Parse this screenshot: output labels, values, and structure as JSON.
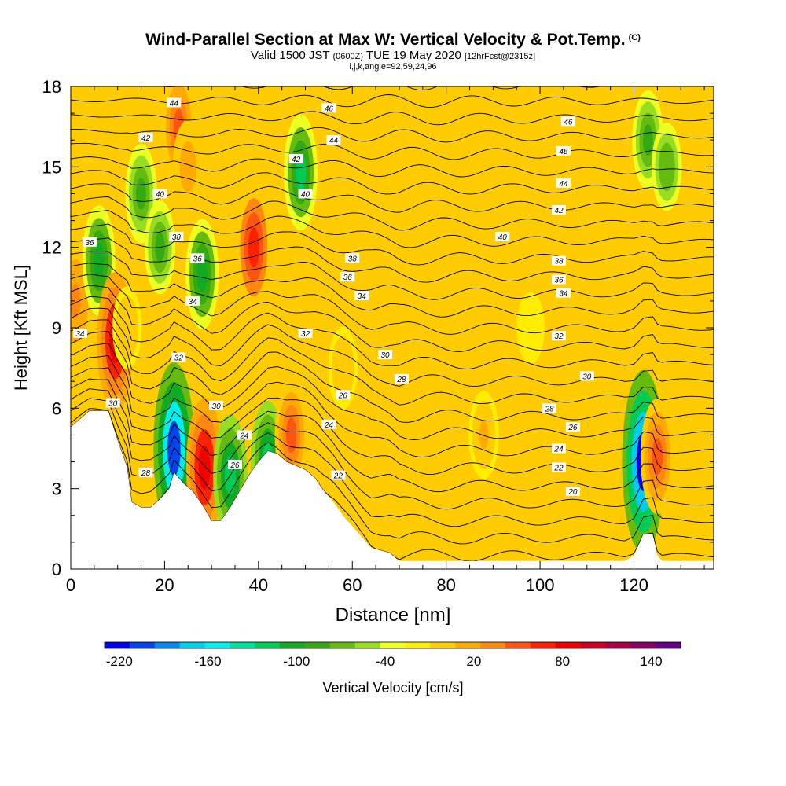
{
  "header": {
    "title": "Wind-Parallel Section at Max W: Vertical Velocity & Pot.Temp.",
    "title_tag": "(C)",
    "valid_prefix": "Valid 1500 JST",
    "valid_utc": "(0600Z)",
    "valid_date": "TUE 19 May 2020",
    "forecast": "[12hrFcst@2315z]",
    "indices": "i,j,k,angle=92,59,24,96"
  },
  "chart_data": {
    "type": "heatmap",
    "xlabel": "Distance [nm]",
    "ylabel": "Height [Kft MSL]",
    "xlim": [
      0,
      137
    ],
    "ylim": [
      0,
      18
    ],
    "x_ticks": [
      0,
      20,
      40,
      60,
      80,
      100,
      120
    ],
    "y_ticks": [
      0,
      3,
      6,
      9,
      12,
      15,
      18
    ],
    "colorbar": {
      "label": "Vertical Velocity [cm/s]",
      "min": -230,
      "max": 160,
      "step": 20,
      "tick_labels": [
        -220,
        -160,
        -100,
        -40,
        20,
        80,
        140
      ],
      "colors": [
        "#0000ee",
        "#0044ee",
        "#0088ee",
        "#00ccee",
        "#00eeee",
        "#00dd99",
        "#00cc55",
        "#11aa22",
        "#33aa11",
        "#66bb11",
        "#99dd22",
        "#eeff22",
        "#ffee00",
        "#ffcc00",
        "#ffaa00",
        "#ff8811",
        "#ff5511",
        "#ff2200",
        "#ee0000",
        "#cc0022",
        "#aa0044",
        "#880066",
        "#660088"
      ]
    },
    "terrain_kft": [
      [
        0,
        5.3
      ],
      [
        2,
        5.6
      ],
      [
        4,
        5.9
      ],
      [
        6,
        5.9
      ],
      [
        8,
        5.9
      ],
      [
        10,
        4.8
      ],
      [
        12,
        3.8
      ],
      [
        13,
        2.5
      ],
      [
        15,
        2.3
      ],
      [
        17,
        2.3
      ],
      [
        19,
        2.6
      ],
      [
        21,
        3.0
      ],
      [
        22,
        3.6
      ],
      [
        24,
        3.2
      ],
      [
        26,
        2.9
      ],
      [
        28,
        2.4
      ],
      [
        30,
        1.8
      ],
      [
        32,
        1.8
      ],
      [
        34,
        2.3
      ],
      [
        36,
        2.9
      ],
      [
        38,
        3.5
      ],
      [
        40,
        4.0
      ],
      [
        42,
        4.4
      ],
      [
        44,
        4.3
      ],
      [
        46,
        4.0
      ],
      [
        50,
        3.7
      ],
      [
        52,
        3.4
      ],
      [
        54,
        2.9
      ],
      [
        56,
        2.5
      ],
      [
        58,
        2.0
      ],
      [
        60,
        1.6
      ],
      [
        62,
        1.2
      ],
      [
        64,
        0.8
      ],
      [
        66,
        0.7
      ],
      [
        68,
        0.6
      ],
      [
        70,
        0.3
      ],
      [
        75,
        0.3
      ],
      [
        80,
        0.3
      ],
      [
        90,
        0.3
      ],
      [
        100,
        0.3
      ],
      [
        110,
        0.3
      ],
      [
        118,
        0.3
      ],
      [
        120,
        0.5
      ],
      [
        122,
        1.3
      ],
      [
        124,
        1.3
      ],
      [
        125,
        0.5
      ],
      [
        126,
        0.3
      ],
      [
        130,
        0.3
      ],
      [
        137,
        0.3
      ]
    ],
    "vertical_velocity_features": [
      {
        "x": 1,
        "y": 10,
        "w_cms": 85
      },
      {
        "x": 6,
        "y": 11.5,
        "w_cms": -90
      },
      {
        "x": 9.5,
        "y": 8.5,
        "w_cms": 140
      },
      {
        "x": 12,
        "y": 9,
        "w_cms": 40
      },
      {
        "x": 15,
        "y": 14,
        "w_cms": -70
      },
      {
        "x": 19,
        "y": 12,
        "w_cms": -60
      },
      {
        "x": 23,
        "y": 16.5,
        "w_cms": 90
      },
      {
        "x": 22,
        "y": 4.5,
        "w_cms": -200
      },
      {
        "x": 25,
        "y": 15,
        "w_cms": 60
      },
      {
        "x": 28.5,
        "y": 3.8,
        "w_cms": 140
      },
      {
        "x": 28,
        "y": 11,
        "w_cms": -90
      },
      {
        "x": 34,
        "y": 3.5,
        "w_cms": -110
      },
      {
        "x": 39,
        "y": 12,
        "w_cms": 120
      },
      {
        "x": 42,
        "y": 4,
        "w_cms": -110
      },
      {
        "x": 47,
        "y": 5,
        "w_cms": 90
      },
      {
        "x": 49,
        "y": 14.8,
        "w_cms": -100
      },
      {
        "x": 58,
        "y": 7.5,
        "w_cms": 40
      },
      {
        "x": 88,
        "y": 5,
        "w_cms": 50
      },
      {
        "x": 98,
        "y": 9,
        "w_cms": 20
      },
      {
        "x": 122,
        "y": 4,
        "w_cms": -220
      },
      {
        "x": 125,
        "y": 4.2,
        "w_cms": 100
      },
      {
        "x": 123,
        "y": 16,
        "w_cms": -70
      },
      {
        "x": 127,
        "y": 15,
        "w_cms": -50
      }
    ],
    "potential_temperature_labels": [
      {
        "x": 22,
        "y": 17.4,
        "text": "44"
      },
      {
        "x": 55,
        "y": 17.2,
        "text": "46"
      },
      {
        "x": 106,
        "y": 16.7,
        "text": "46"
      },
      {
        "x": 16,
        "y": 16.1,
        "text": "42"
      },
      {
        "x": 56,
        "y": 16.0,
        "text": "44"
      },
      {
        "x": 105,
        "y": 15.6,
        "text": "46"
      },
      {
        "x": 48,
        "y": 15.3,
        "text": "42"
      },
      {
        "x": 105,
        "y": 14.4,
        "text": "44"
      },
      {
        "x": 19,
        "y": 14.0,
        "text": "40"
      },
      {
        "x": 50,
        "y": 14.0,
        "text": "40"
      },
      {
        "x": 104,
        "y": 13.4,
        "text": "42"
      },
      {
        "x": 4,
        "y": 12.2,
        "text": "36"
      },
      {
        "x": 22.5,
        "y": 12.4,
        "text": "38"
      },
      {
        "x": 92,
        "y": 12.4,
        "text": "40"
      },
      {
        "x": 27,
        "y": 11.6,
        "text": "36"
      },
      {
        "x": 60,
        "y": 11.6,
        "text": "38"
      },
      {
        "x": 104,
        "y": 11.5,
        "text": "38"
      },
      {
        "x": 59,
        "y": 10.9,
        "text": "36"
      },
      {
        "x": 104,
        "y": 10.8,
        "text": "36"
      },
      {
        "x": 26,
        "y": 10.0,
        "text": "34"
      },
      {
        "x": 62,
        "y": 10.2,
        "text": "34"
      },
      {
        "x": 105,
        "y": 10.3,
        "text": "34"
      },
      {
        "x": 2,
        "y": 8.8,
        "text": "34"
      },
      {
        "x": 50,
        "y": 8.8,
        "text": "32"
      },
      {
        "x": 104,
        "y": 8.7,
        "text": "32"
      },
      {
        "x": 23,
        "y": 7.9,
        "text": "32"
      },
      {
        "x": 67,
        "y": 8.0,
        "text": "30"
      },
      {
        "x": 70.5,
        "y": 7.1,
        "text": "28"
      },
      {
        "x": 110,
        "y": 7.2,
        "text": "30"
      },
      {
        "x": 9,
        "y": 6.2,
        "text": "30"
      },
      {
        "x": 31,
        "y": 6.1,
        "text": "30"
      },
      {
        "x": 58,
        "y": 6.5,
        "text": "26"
      },
      {
        "x": 102,
        "y": 6.0,
        "text": "28"
      },
      {
        "x": 55,
        "y": 5.4,
        "text": "24"
      },
      {
        "x": 37,
        "y": 5.0,
        "text": "24"
      },
      {
        "x": 107,
        "y": 5.3,
        "text": "26"
      },
      {
        "x": 104,
        "y": 4.5,
        "text": "24"
      },
      {
        "x": 35,
        "y": 3.9,
        "text": "26"
      },
      {
        "x": 16,
        "y": 3.6,
        "text": "28"
      },
      {
        "x": 104,
        "y": 3.8,
        "text": "22"
      },
      {
        "x": 57,
        "y": 3.5,
        "text": "22"
      },
      {
        "x": 107,
        "y": 2.9,
        "text": "20"
      }
    ]
  }
}
